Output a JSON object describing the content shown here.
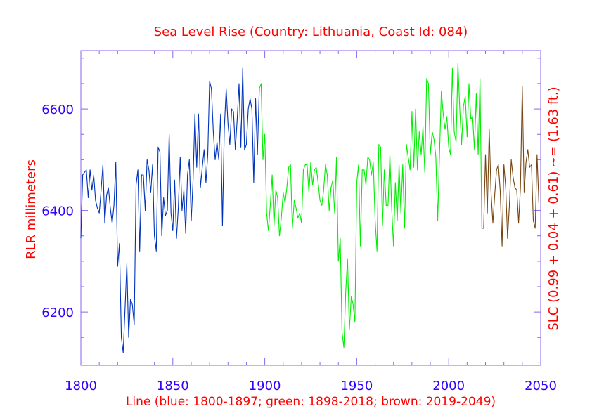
{
  "chart_data": {
    "type": "line",
    "title": "Sea Level Rise (Country: Lithuania, Coast Id: 084)",
    "xlabel": "Line (blue: 1800-1897; green: 1898-2018; brown: 2019-2049)",
    "ylabel": "RLR millimeters",
    "y2label": "SLC (0.99 + 0.04 + 0.61) ~= (1.63 ft.)",
    "xlim": [
      1800,
      2050
    ],
    "ylim": [
      6095,
      6715
    ],
    "x_ticks_major": [
      1800,
      1850,
      1900,
      1950,
      2000,
      2050
    ],
    "x_tick_labels": [
      "1800",
      "1850",
      "1900",
      "1950",
      "2000",
      "2050"
    ],
    "y_ticks_major": [
      6200,
      6400,
      6600
    ],
    "y_tick_labels": [
      "6200",
      "6400",
      "6600"
    ],
    "grid": false,
    "colors": {
      "blue": "#0033bb",
      "green": "#00ee00",
      "brown": "#774411",
      "axis": "#8866ee",
      "tick_label": "#3300ff",
      "text": "#ff0000"
    },
    "series": [
      {
        "name": "blue",
        "color": "#0033bb",
        "x": [
          1800,
          1801,
          1802,
          1803,
          1804,
          1805,
          1806,
          1807,
          1808,
          1809,
          1810,
          1811,
          1812,
          1813,
          1814,
          1815,
          1816,
          1817,
          1818,
          1819,
          1820,
          1821,
          1822,
          1823,
          1824,
          1825,
          1826,
          1827,
          1828,
          1829,
          1830,
          1831,
          1832,
          1833,
          1834,
          1835,
          1836,
          1837,
          1838,
          1839,
          1840,
          1841,
          1842,
          1843,
          1844,
          1845,
          1846,
          1847,
          1848,
          1849,
          1850,
          1851,
          1852,
          1853,
          1854,
          1855,
          1856,
          1857,
          1858,
          1859,
          1860,
          1861,
          1862,
          1863,
          1864,
          1865,
          1866,
          1867,
          1868,
          1869,
          1870,
          1871,
          1872,
          1873,
          1874,
          1875,
          1876,
          1877,
          1878,
          1879,
          1880,
          1881,
          1882,
          1883,
          1884,
          1885,
          1886,
          1887,
          1888,
          1889,
          1890,
          1891,
          1892,
          1893,
          1894,
          1895,
          1896,
          1897
        ],
        "y": [
          6345,
          6470,
          6475,
          6480,
          6425,
          6480,
          6440,
          6470,
          6420,
          6405,
          6395,
          6440,
          6490,
          6375,
          6430,
          6445,
          6405,
          6375,
          6410,
          6495,
          6290,
          6335,
          6150,
          6120,
          6205,
          6295,
          6150,
          6225,
          6215,
          6175,
          6450,
          6480,
          6320,
          6470,
          6470,
          6400,
          6500,
          6480,
          6435,
          6490,
          6350,
          6320,
          6525,
          6515,
          6350,
          6425,
          6390,
          6400,
          6550,
          6395,
          6360,
          6460,
          6345,
          6405,
          6505,
          6400,
          6440,
          6355,
          6470,
          6500,
          6380,
          6460,
          6590,
          6485,
          6590,
          6445,
          6485,
          6520,
          6455,
          6510,
          6655,
          6640,
          6555,
          6500,
          6535,
          6500,
          6590,
          6370,
          6560,
          6640,
          6570,
          6530,
          6600,
          6595,
          6520,
          6580,
          6650,
          6525,
          6680,
          6520,
          6530,
          6600,
          6620,
          6600,
          6455,
          6620,
          6510,
          6640
        ]
      },
      {
        "name": "green",
        "color": "#00ee00",
        "x": [
          1898,
          1899,
          1900,
          1901,
          1902,
          1903,
          1904,
          1905,
          1906,
          1907,
          1908,
          1909,
          1910,
          1911,
          1912,
          1913,
          1914,
          1915,
          1916,
          1917,
          1918,
          1919,
          1920,
          1921,
          1922,
          1923,
          1924,
          1925,
          1926,
          1927,
          1928,
          1929,
          1930,
          1931,
          1932,
          1933,
          1934,
          1935,
          1936,
          1937,
          1938,
          1939,
          1940,
          1941,
          1942,
          1943,
          1944,
          1945,
          1946,
          1947,
          1948,
          1949,
          1950,
          1951,
          1952,
          1953,
          1954,
          1955,
          1956,
          1957,
          1958,
          1959,
          1960,
          1961,
          1962,
          1963,
          1964,
          1965,
          1966,
          1967,
          1968,
          1969,
          1970,
          1971,
          1972,
          1973,
          1974,
          1975,
          1976,
          1977,
          1978,
          1979,
          1980,
          1981,
          1982,
          1983,
          1984,
          1985,
          1986,
          1987,
          1988,
          1989,
          1990,
          1991,
          1992,
          1993,
          1994,
          1995,
          1996,
          1997,
          1998,
          1999,
          2000,
          2001,
          2002,
          2003,
          2004,
          2005,
          2006,
          2007,
          2008,
          2009,
          2010,
          2011,
          2012,
          2013,
          2014,
          2015,
          2016,
          2017,
          2018
        ],
        "y": [
          6650,
          6500,
          6550,
          6395,
          6360,
          6410,
          6470,
          6370,
          6440,
          6425,
          6350,
          6385,
          6435,
          6415,
          6445,
          6485,
          6490,
          6365,
          6420,
          6405,
          6385,
          6395,
          6375,
          6480,
          6490,
          6490,
          6435,
          6495,
          6450,
          6480,
          6485,
          6455,
          6420,
          6410,
          6440,
          6490,
          6470,
          6400,
          6445,
          6460,
          6395,
          6505,
          6300,
          6345,
          6160,
          6130,
          6240,
          6305,
          6165,
          6230,
          6215,
          6180,
          6455,
          6490,
          6330,
          6480,
          6480,
          6450,
          6505,
          6500,
          6470,
          6495,
          6380,
          6320,
          6530,
          6525,
          6370,
          6480,
          6410,
          6410,
          6510,
          6405,
          6330,
          6455,
          6380,
          6490,
          6395,
          6490,
          6365,
          6530,
          6505,
          6480,
          6595,
          6485,
          6600,
          6480,
          6555,
          6510,
          6565,
          6475,
          6660,
          6650,
          6510,
          6555,
          6540,
          6505,
          6380,
          6510,
          6635,
          6590,
          6560,
          6585,
          6525,
          6510,
          6680,
          6555,
          6535,
          6690,
          6600,
          6530,
          6605,
          6625,
          6545,
          6650,
          6580,
          6585,
          6520,
          6630,
          6510,
          6660,
          6365
        ]
      },
      {
        "name": "brown",
        "color": "#774411",
        "x": [
          2019,
          2020,
          2021,
          2022,
          2023,
          2024,
          2025,
          2026,
          2027,
          2028,
          2029,
          2030,
          2031,
          2032,
          2033,
          2034,
          2035,
          2036,
          2037,
          2038,
          2039,
          2040,
          2041,
          2042,
          2043,
          2044,
          2045,
          2046,
          2047,
          2048,
          2049
        ],
        "y": [
          6365,
          6510,
          6395,
          6560,
          6435,
          6375,
          6430,
          6480,
          6490,
          6440,
          6330,
          6490,
          6445,
          6345,
          6410,
          6500,
          6465,
          6445,
          6440,
          6375,
          6445,
          6645,
          6435,
          6495,
          6520,
          6485,
          6490,
          6380,
          6365,
          6510,
          6415
        ]
      }
    ]
  }
}
